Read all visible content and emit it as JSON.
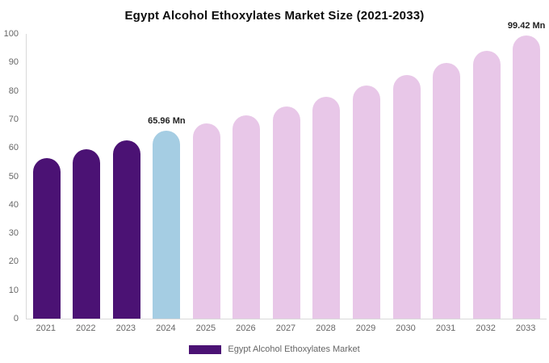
{
  "chart_data": {
    "type": "bar",
    "title": "Egypt Alcohol Ethoxylates Market Size (2021-2033)",
    "categories": [
      "2021",
      "2022",
      "2023",
      "2024",
      "2025",
      "2026",
      "2027",
      "2028",
      "2029",
      "2030",
      "2031",
      "2032",
      "2033"
    ],
    "values": [
      56.5,
      59.5,
      62.5,
      65.96,
      68.5,
      71.5,
      74.5,
      78.0,
      81.8,
      85.5,
      89.8,
      94.0,
      99.42
    ],
    "bar_colors": [
      "#4b1274",
      "#4b1274",
      "#4b1274",
      "#a5cde3",
      "#e8c7e8",
      "#e8c7e8",
      "#e8c7e8",
      "#e8c7e8",
      "#e8c7e8",
      "#e8c7e8",
      "#e8c7e8",
      "#e8c7e8",
      "#e8c7e8"
    ],
    "annotations": [
      {
        "index": 3,
        "text": "65.96 Mn"
      },
      {
        "index": 12,
        "text": "99.42 Mn"
      }
    ],
    "xlabel": "",
    "ylabel": "",
    "ylim": [
      0,
      100
    ],
    "yticks": [
      0,
      10,
      20,
      30,
      40,
      50,
      60,
      70,
      80,
      90,
      100
    ],
    "grid": false,
    "legend_position": "bottom",
    "legend": "Egypt Alcohol Ethoxylates Market",
    "legend_color": "#4b1274"
  }
}
